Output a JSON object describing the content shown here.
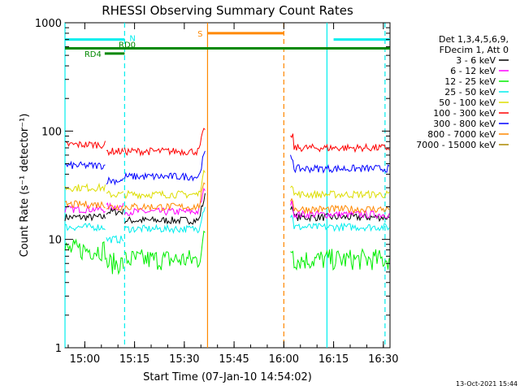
{
  "chart_data": {
    "type": "line",
    "title": "RHESSI Observing Summary Count Rates",
    "xlabel": "Start Time (07-Jan-10 14:54:02)",
    "ylabel": "Count Rate (s⁻¹ detector⁻¹)",
    "xlim": [
      "14:54:02",
      "16:32:00"
    ],
    "ylim": [
      1,
      1000
    ],
    "yscale": "log",
    "x_ticks": [
      "15:00",
      "15:15",
      "15:30",
      "15:45",
      "16:00",
      "16:15",
      "16:30"
    ],
    "y_ticks": [
      "1",
      "10",
      "100",
      "1000"
    ],
    "legend_header": [
      "Det 1,3,4,5,6,9,",
      "FDecim 1, Att 0"
    ],
    "legend_position": "right",
    "timestamp": "13-Oct-2021 15:44",
    "segments": [
      {
        "start": "14:54:02",
        "end": "15:06:30"
      },
      {
        "start": "15:06:30",
        "end": "15:12:00"
      },
      {
        "start": "15:12:00",
        "end": "15:36:20"
      },
      {
        "start": "16:02:00",
        "end": "16:32:00"
      }
    ],
    "series": [
      {
        "name": "3 - 6 keV",
        "color": "#000000",
        "values": [
          16,
          18,
          15,
          16
        ]
      },
      {
        "name": "6 - 12 keV",
        "color": "#ff00ff",
        "values": [
          19,
          20,
          18,
          17
        ]
      },
      {
        "name": "12 - 25 keV",
        "color": "#00ee00",
        "values": [
          8,
          6,
          6.5,
          6.5
        ]
      },
      {
        "name": "25 - 50 keV",
        "color": "#00eeee",
        "values": [
          13,
          10,
          12.5,
          13
        ]
      },
      {
        "name": "50 - 100 keV",
        "color": "#dddd00",
        "values": [
          30,
          26,
          26,
          26
        ]
      },
      {
        "name": "100 - 300 keV",
        "color": "#ff0000",
        "values": [
          75,
          65,
          65,
          70
        ]
      },
      {
        "name": "300 - 800 keV",
        "color": "#0000ff",
        "values": [
          48,
          35,
          38,
          45
        ]
      },
      {
        "name": "800 - 7000 keV",
        "color": "#ff8800",
        "values": [
          21,
          20,
          20,
          19
        ]
      },
      {
        "name": "7000 - 15000 keV",
        "color": "#aa8800",
        "values": [
          null,
          null,
          null,
          null
        ]
      }
    ],
    "state_bars": [
      {
        "label": "N",
        "color": "#00eeee",
        "value": 700,
        "ranges": [
          [
            "14:54:02",
            "15:12:00"
          ],
          [
            "16:15:00",
            "16:32:00"
          ]
        ]
      },
      {
        "label": "RD0",
        "color": "#008800",
        "value": 580,
        "ranges": [
          [
            "14:54:02",
            "16:32:00"
          ]
        ]
      },
      {
        "label": "RD4",
        "color": "#008800",
        "value": 520,
        "ranges": [
          [
            "15:06:00",
            "15:12:00"
          ]
        ]
      },
      {
        "label": "S",
        "color": "#ff8800",
        "value": 800,
        "ranges": [
          [
            "15:37:00",
            "16:00:00"
          ]
        ]
      }
    ],
    "event_lines": [
      {
        "color": "#00eeee",
        "style": "solid",
        "time": "14:54:02"
      },
      {
        "color": "#00eeee",
        "style": "dashed",
        "time": "15:12:00"
      },
      {
        "color": "#ff8800",
        "style": "solid",
        "time": "15:37:00"
      },
      {
        "color": "#ff8800",
        "style": "dashed",
        "time": "16:00:00"
      },
      {
        "color": "#00eeee",
        "style": "solid",
        "time": "16:13:00"
      },
      {
        "color": "#00eeee",
        "style": "dashed",
        "time": "16:30:30"
      }
    ]
  }
}
